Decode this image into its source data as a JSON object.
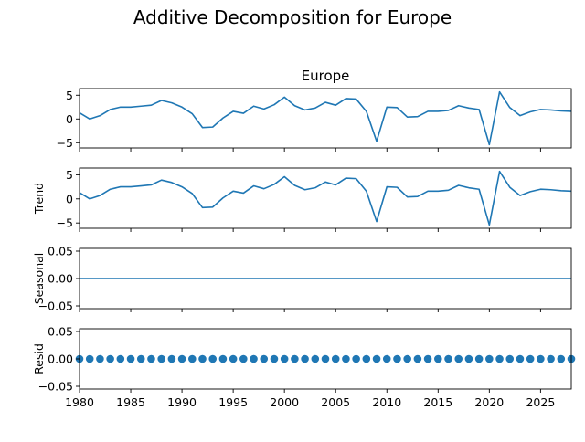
{
  "figure": {
    "title": "Additive Decomposition for Europe"
  },
  "colors": {
    "line": "#1f77b4",
    "axes": "#000000",
    "background": "#ffffff"
  },
  "chart_data": [
    {
      "type": "line",
      "title": "Europe",
      "xlabel": "",
      "ylabel": "",
      "xlim": [
        1980,
        2028
      ],
      "ylim": [
        -6.1,
        6.4
      ],
      "yticks": [
        -5,
        0,
        5
      ],
      "ytick_labels": [
        "−5",
        "0",
        "5"
      ],
      "x": [
        1980,
        1981,
        1982,
        1983,
        1984,
        1985,
        1986,
        1987,
        1988,
        1989,
        1990,
        1991,
        1992,
        1993,
        1994,
        1995,
        1996,
        1997,
        1998,
        1999,
        2000,
        2001,
        2002,
        2003,
        2004,
        2005,
        2006,
        2007,
        2008,
        2009,
        2010,
        2011,
        2012,
        2013,
        2014,
        2015,
        2016,
        2017,
        2018,
        2019,
        2020,
        2021,
        2022,
        2023,
        2024,
        2025,
        2026,
        2027,
        2028
      ],
      "series": [
        {
          "values": [
            1.3,
            0.0,
            0.7,
            2.0,
            2.5,
            2.5,
            2.7,
            2.9,
            3.9,
            3.4,
            2.5,
            1.1,
            -1.8,
            -1.7,
            0.2,
            1.6,
            1.2,
            2.7,
            2.1,
            3.0,
            4.6,
            2.8,
            1.9,
            2.3,
            3.5,
            2.9,
            4.3,
            4.2,
            1.6,
            -4.7,
            2.5,
            2.4,
            0.4,
            0.5,
            1.6,
            1.6,
            1.8,
            2.8,
            2.3,
            2.0,
            -5.4,
            5.7,
            2.4,
            0.7,
            1.5,
            2.0,
            1.9,
            1.7,
            1.6
          ]
        }
      ],
      "grid": false,
      "show_x_tick_labels": false
    },
    {
      "type": "line",
      "title": "",
      "xlabel": "",
      "ylabel": "Trend",
      "xlim": [
        1980,
        2028
      ],
      "ylim": [
        -6.1,
        6.4
      ],
      "yticks": [
        -5,
        0,
        5
      ],
      "ytick_labels": [
        "−5",
        "0",
        "5"
      ],
      "x": [
        1980,
        1981,
        1982,
        1983,
        1984,
        1985,
        1986,
        1987,
        1988,
        1989,
        1990,
        1991,
        1992,
        1993,
        1994,
        1995,
        1996,
        1997,
        1998,
        1999,
        2000,
        2001,
        2002,
        2003,
        2004,
        2005,
        2006,
        2007,
        2008,
        2009,
        2010,
        2011,
        2012,
        2013,
        2014,
        2015,
        2016,
        2017,
        2018,
        2019,
        2020,
        2021,
        2022,
        2023,
        2024,
        2025,
        2026,
        2027,
        2028
      ],
      "series": [
        {
          "values": [
            1.3,
            0.0,
            0.7,
            2.0,
            2.5,
            2.5,
            2.7,
            2.9,
            3.9,
            3.4,
            2.5,
            1.1,
            -1.8,
            -1.7,
            0.2,
            1.6,
            1.2,
            2.7,
            2.1,
            3.0,
            4.6,
            2.8,
            1.9,
            2.3,
            3.5,
            2.9,
            4.3,
            4.2,
            1.6,
            -4.7,
            2.5,
            2.4,
            0.4,
            0.5,
            1.6,
            1.6,
            1.8,
            2.8,
            2.3,
            2.0,
            -5.4,
            5.7,
            2.4,
            0.7,
            1.5,
            2.0,
            1.9,
            1.7,
            1.6
          ]
        }
      ],
      "grid": false,
      "show_x_tick_labels": false
    },
    {
      "type": "line",
      "title": "",
      "xlabel": "",
      "ylabel": "Seasonal",
      "xlim": [
        1980,
        2028
      ],
      "ylim": [
        -0.055,
        0.055
      ],
      "yticks": [
        -0.05,
        0.0,
        0.05
      ],
      "ytick_labels": [
        "−0.05",
        "0.00",
        "0.05"
      ],
      "x": [
        1980,
        1981,
        1982,
        1983,
        1984,
        1985,
        1986,
        1987,
        1988,
        1989,
        1990,
        1991,
        1992,
        1993,
        1994,
        1995,
        1996,
        1997,
        1998,
        1999,
        2000,
        2001,
        2002,
        2003,
        2004,
        2005,
        2006,
        2007,
        2008,
        2009,
        2010,
        2011,
        2012,
        2013,
        2014,
        2015,
        2016,
        2017,
        2018,
        2019,
        2020,
        2021,
        2022,
        2023,
        2024,
        2025,
        2026,
        2027,
        2028
      ],
      "series": [
        {
          "values": [
            0,
            0,
            0,
            0,
            0,
            0,
            0,
            0,
            0,
            0,
            0,
            0,
            0,
            0,
            0,
            0,
            0,
            0,
            0,
            0,
            0,
            0,
            0,
            0,
            0,
            0,
            0,
            0,
            0,
            0,
            0,
            0,
            0,
            0,
            0,
            0,
            0,
            0,
            0,
            0,
            0,
            0,
            0,
            0,
            0,
            0,
            0,
            0,
            0
          ]
        }
      ],
      "grid": false,
      "show_x_tick_labels": false
    },
    {
      "type": "scatter",
      "title": "",
      "xlabel": "",
      "ylabel": "Resid",
      "xlim": [
        1980,
        2028
      ],
      "ylim": [
        -0.055,
        0.055
      ],
      "yticks": [
        -0.05,
        0.0,
        0.05
      ],
      "ytick_labels": [
        "−0.05",
        "0.00",
        "0.05"
      ],
      "x": [
        1980,
        1981,
        1982,
        1983,
        1984,
        1985,
        1986,
        1987,
        1988,
        1989,
        1990,
        1991,
        1992,
        1993,
        1994,
        1995,
        1996,
        1997,
        1998,
        1999,
        2000,
        2001,
        2002,
        2003,
        2004,
        2005,
        2006,
        2007,
        2008,
        2009,
        2010,
        2011,
        2012,
        2013,
        2014,
        2015,
        2016,
        2017,
        2018,
        2019,
        2020,
        2021,
        2022,
        2023,
        2024,
        2025,
        2026,
        2027,
        2028
      ],
      "series": [
        {
          "values": [
            0,
            0,
            0,
            0,
            0,
            0,
            0,
            0,
            0,
            0,
            0,
            0,
            0,
            0,
            0,
            0,
            0,
            0,
            0,
            0,
            0,
            0,
            0,
            0,
            0,
            0,
            0,
            0,
            0,
            0,
            0,
            0,
            0,
            0,
            0,
            0,
            0,
            0,
            0,
            0,
            0,
            0,
            0,
            0,
            0,
            0,
            0,
            0,
            0
          ]
        }
      ],
      "grid": false,
      "show_x_tick_labels": true,
      "xticks": [
        1980,
        1985,
        1990,
        1995,
        2000,
        2005,
        2010,
        2015,
        2020,
        2025
      ]
    }
  ]
}
